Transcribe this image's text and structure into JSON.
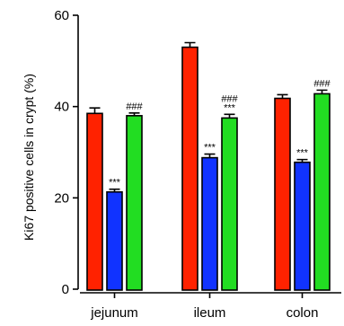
{
  "chart_data": {
    "type": "bar",
    "title": "",
    "xlabel": "",
    "ylabel": "Ki67 positive cells  in crypt (%)",
    "ylim": [
      0,
      60
    ],
    "yticks": [
      0,
      20,
      40,
      60
    ],
    "categories": [
      "jejunum",
      "ileum",
      "colon"
    ],
    "grid": false,
    "series": [
      {
        "color": "#ff2200",
        "values": [
          38.5,
          53.0,
          41.8
        ],
        "errors": [
          1.2,
          1.0,
          0.8
        ]
      },
      {
        "color": "#1133ff",
        "values": [
          21.3,
          28.8,
          27.8
        ],
        "errors": [
          0.6,
          0.8,
          0.6
        ]
      },
      {
        "color": "#22dd22",
        "values": [
          38.0,
          37.5,
          42.8
        ],
        "errors": [
          0.6,
          0.8,
          0.8
        ]
      }
    ],
    "annotations": [
      {
        "category": "jejunum",
        "series_index": 1,
        "text": "***"
      },
      {
        "category": "jejunum",
        "series_index": 2,
        "text": "###"
      },
      {
        "category": "ileum",
        "series_index": 1,
        "text": "***"
      },
      {
        "category": "ileum",
        "series_index": 2,
        "text": "***"
      },
      {
        "category": "ileum",
        "series_index": 2,
        "text": "###"
      },
      {
        "category": "colon",
        "series_index": 1,
        "text": "***"
      },
      {
        "category": "colon",
        "series_index": 2,
        "text": "###"
      }
    ]
  }
}
